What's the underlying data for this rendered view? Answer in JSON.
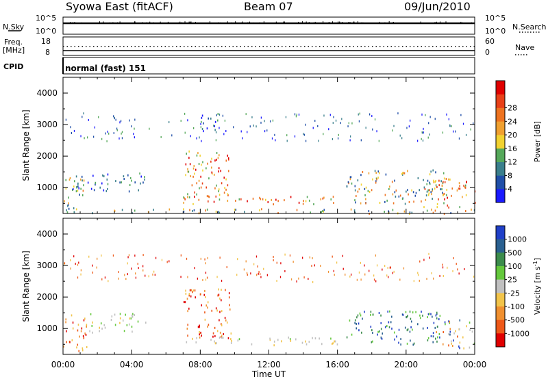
{
  "header": {
    "title": "Syowa East (fitACF)",
    "beam": "Beam 07",
    "date": "09/Jun/2010"
  },
  "summary": {
    "nsky_label": "N.Sky",
    "nsearch_label": "N.Search",
    "freq_label": "Freq.",
    "freq_unit": "[MHz]",
    "nave_label": "Nave",
    "cpid_label": "CPID",
    "cpid_value": "normal (fast) 151",
    "nsky_ticks": [
      "10^5",
      "10^0"
    ],
    "freq_ticks": [
      "18",
      "8"
    ],
    "nave_ticks": [
      "60",
      "0"
    ]
  },
  "chart_data": [
    {
      "type": "heatmap",
      "title": "",
      "xlabel": "",
      "ylabel": "Slant Range [km]",
      "xlim": [
        0,
        24
      ],
      "ylim": [
        180,
        4500
      ],
      "x_ticks": [
        "00:00",
        "04:00",
        "08:00",
        "12:00",
        "16:00",
        "20:00",
        "00:00"
      ],
      "y_ticks": [
        1000,
        2000,
        3000,
        4000
      ],
      "colorbar": {
        "label": "Power [dB]",
        "ticks": [
          "4",
          "8",
          "12",
          "16",
          "20",
          "24",
          "28"
        ],
        "colors": [
          "#1a1aff",
          "#204fa8",
          "#3a7f8c",
          "#55a85a",
          "#f2d230",
          "#f0a030",
          "#ee7320",
          "#e84018",
          "#e00000"
        ]
      },
      "echo_regions": [
        {
          "t0": 0.0,
          "t1": 1.2,
          "r0": 300,
          "r1": 1500,
          "level": "medium"
        },
        {
          "t0": 0.5,
          "t1": 4.8,
          "r0": 900,
          "r1": 1500,
          "level": "low"
        },
        {
          "t0": 0.0,
          "t1": 24.0,
          "r0": 200,
          "r1": 350,
          "level": "medium"
        },
        {
          "t0": 7.0,
          "t1": 9.8,
          "r0": 700,
          "r1": 2300,
          "level": "high"
        },
        {
          "t0": 8.0,
          "t1": 9.3,
          "r0": 2700,
          "r1": 3400,
          "level": "low"
        },
        {
          "t0": 6.5,
          "t1": 16.0,
          "r0": 500,
          "r1": 750,
          "level": "high"
        },
        {
          "t0": 16.5,
          "t1": 22.5,
          "r0": 500,
          "r1": 1600,
          "level": "medium"
        },
        {
          "t0": 21.0,
          "t1": 24.0,
          "r0": 400,
          "r1": 1300,
          "level": "high"
        }
      ]
    },
    {
      "type": "heatmap",
      "title": "",
      "xlabel": "Time UT",
      "ylabel": "Slant Range [km]",
      "xlim": [
        0,
        24
      ],
      "ylim": [
        180,
        4500
      ],
      "x_ticks": [
        "00:00",
        "04:00",
        "08:00",
        "12:00",
        "16:00",
        "20:00",
        "00:00"
      ],
      "y_ticks": [
        1000,
        2000,
        3000,
        4000
      ],
      "colorbar": {
        "label": "Velocity [m s^-1]",
        "ticks": [
          "1000",
          "500",
          "100",
          "25",
          "-25",
          "-100",
          "-500",
          "-1000"
        ],
        "colors": [
          "#2040c8",
          "#2a6090",
          "#3c8c4c",
          "#64c83c",
          "#c0c0c0",
          "#f2c44a",
          "#f09030",
          "#ee5818",
          "#e00000"
        ]
      },
      "echo_regions": [
        {
          "t0": 0.0,
          "t1": 1.5,
          "r0": 300,
          "r1": 1500,
          "velocity": "negative"
        },
        {
          "t0": 1.5,
          "t1": 4.8,
          "r0": 900,
          "r1": 1500,
          "velocity": "near-zero"
        },
        {
          "t0": 7.0,
          "t1": 9.8,
          "r0": 700,
          "r1": 2300,
          "velocity": "negative"
        },
        {
          "t0": 6.5,
          "t1": 16.0,
          "r0": 500,
          "r1": 750,
          "velocity": "near-zero"
        },
        {
          "t0": 16.5,
          "t1": 22.0,
          "r0": 500,
          "r1": 1600,
          "velocity": "positive"
        },
        {
          "t0": 21.5,
          "t1": 24.0,
          "r0": 400,
          "r1": 1300,
          "velocity": "mixed"
        }
      ]
    }
  ]
}
